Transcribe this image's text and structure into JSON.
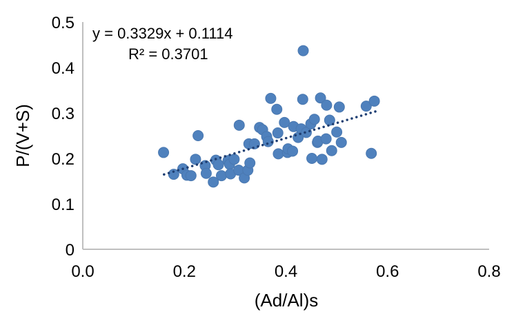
{
  "chart_data": {
    "type": "scatter",
    "xlabel": "(Ad/Al)s",
    "ylabel": "P/(V+S)",
    "xlim": [
      0,
      0.8
    ],
    "ylim": [
      0,
      0.5
    ],
    "x_ticks": [
      "0.0",
      "0.2",
      "0.4",
      "0.6",
      "0.8"
    ],
    "y_ticks": [
      "0",
      "0.1",
      "0.2",
      "0.3",
      "0.4",
      "0.5"
    ],
    "grid": false,
    "legend": "none",
    "marker_color": "#4f81bd",
    "trendline": {
      "type": "linear",
      "slope": 0.3329,
      "intercept": 0.1114,
      "x_range": [
        0.16,
        0.58
      ],
      "style": "dotted",
      "color": "#1f3f73"
    },
    "annotations": {
      "equation": "y = 0.3329x + 0.1114",
      "r_squared": "R² = 0.3701"
    },
    "points": [
      [
        0.159,
        0.213
      ],
      [
        0.179,
        0.165
      ],
      [
        0.197,
        0.177
      ],
      [
        0.205,
        0.163
      ],
      [
        0.213,
        0.162
      ],
      [
        0.222,
        0.198
      ],
      [
        0.227,
        0.25
      ],
      [
        0.241,
        0.184
      ],
      [
        0.243,
        0.167
      ],
      [
        0.257,
        0.148
      ],
      [
        0.262,
        0.196
      ],
      [
        0.267,
        0.186
      ],
      [
        0.273,
        0.162
      ],
      [
        0.286,
        0.195
      ],
      [
        0.289,
        0.187
      ],
      [
        0.291,
        0.166
      ],
      [
        0.298,
        0.198
      ],
      [
        0.307,
        0.174
      ],
      [
        0.308,
        0.273
      ],
      [
        0.318,
        0.157
      ],
      [
        0.325,
        0.174
      ],
      [
        0.327,
        0.232
      ],
      [
        0.329,
        0.19
      ],
      [
        0.338,
        0.232
      ],
      [
        0.348,
        0.268
      ],
      [
        0.354,
        0.263
      ],
      [
        0.362,
        0.248
      ],
      [
        0.365,
        0.237
      ],
      [
        0.37,
        0.332
      ],
      [
        0.382,
        0.308
      ],
      [
        0.384,
        0.256
      ],
      [
        0.385,
        0.21
      ],
      [
        0.397,
        0.279
      ],
      [
        0.403,
        0.213
      ],
      [
        0.404,
        0.221
      ],
      [
        0.413,
        0.216
      ],
      [
        0.415,
        0.27
      ],
      [
        0.424,
        0.246
      ],
      [
        0.43,
        0.265
      ],
      [
        0.433,
        0.33
      ],
      [
        0.434,
        0.437
      ],
      [
        0.44,
        0.257
      ],
      [
        0.449,
        0.276
      ],
      [
        0.451,
        0.2
      ],
      [
        0.456,
        0.286
      ],
      [
        0.462,
        0.235
      ],
      [
        0.463,
        0.238
      ],
      [
        0.468,
        0.333
      ],
      [
        0.471,
        0.198
      ],
      [
        0.479,
        0.243
      ],
      [
        0.48,
        0.317
      ],
      [
        0.486,
        0.284
      ],
      [
        0.49,
        0.217
      ],
      [
        0.5,
        0.258
      ],
      [
        0.505,
        0.313
      ],
      [
        0.509,
        0.235
      ],
      [
        0.558,
        0.315
      ],
      [
        0.568,
        0.211
      ],
      [
        0.574,
        0.326
      ]
    ]
  }
}
